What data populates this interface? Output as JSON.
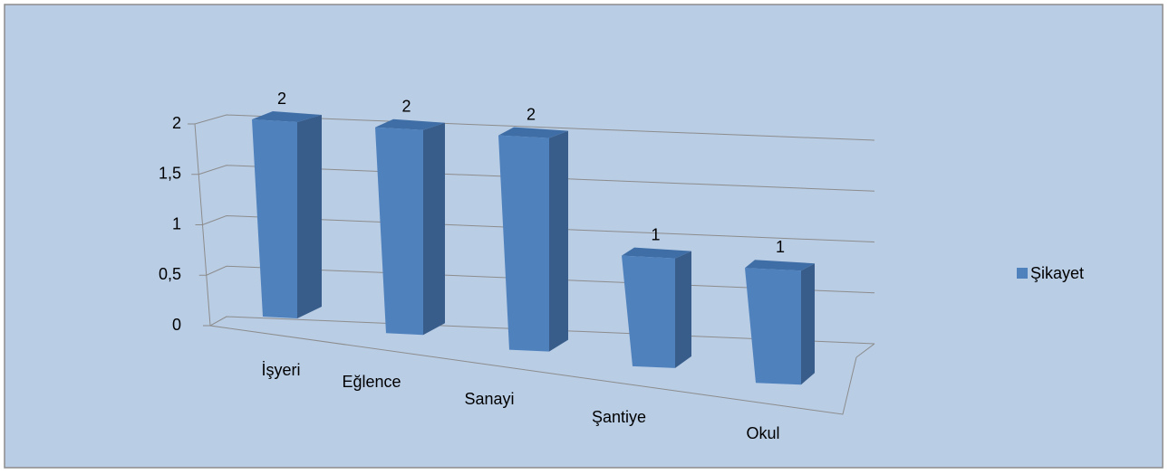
{
  "chart_data": {
    "type": "bar3d",
    "categories": [
      "İşyeri",
      "Eğlence",
      "Sanayi",
      "Şantiye",
      "Okul"
    ],
    "series": [
      {
        "name": "Şikayet",
        "color": "#4f81bd",
        "values": [
          2,
          2,
          2,
          1,
          1
        ]
      }
    ],
    "ylim": [
      0,
      2
    ],
    "yticks": [
      0,
      {
        "value": 0.5,
        "label": "0,5"
      },
      1,
      {
        "value": 1.5,
        "label": "1,5"
      },
      2
    ],
    "grid": true,
    "legend": "right"
  }
}
